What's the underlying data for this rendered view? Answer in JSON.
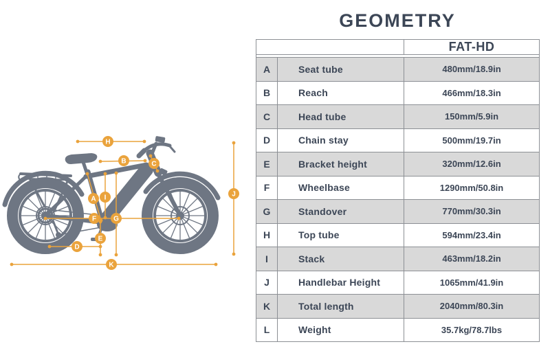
{
  "title": "GEOMETRY",
  "colors": {
    "accent_orange": "#EAA33C",
    "bike_gray": "#6E7683",
    "text_dark": "#3C4656",
    "row_alt_bg": "#D9D9D9",
    "table_border": "#8C8F94"
  },
  "diagram": {
    "measurements": [
      {
        "label": "A",
        "line": [
          127,
          253,
          147,
          321
        ],
        "marker": [
          136,
          289
        ]
      },
      {
        "label": "B",
        "line": [
          146,
          235,
          211,
          234
        ],
        "marker": [
          180,
          234
        ]
      },
      {
        "label": "C",
        "line": [
          219,
          227,
          229,
          249
        ],
        "marker": [
          224,
          238
        ]
      },
      {
        "label": "D",
        "line": [
          72,
          359,
          146,
          359
        ],
        "marker": [
          112,
          359
        ]
      },
      {
        "label": "E",
        "line": [
          146,
          323,
          146,
          371
        ],
        "marker": [
          146,
          347
        ]
      },
      {
        "label": "F",
        "line": [
          66,
          318,
          260,
          318
        ],
        "marker": [
          137,
          318
        ]
      },
      {
        "label": "G",
        "line": [
          169,
          252,
          169,
          371
        ],
        "marker": [
          169,
          318
        ]
      },
      {
        "label": "H",
        "line": [
          113,
          206,
          210,
          206
        ],
        "marker": [
          157,
          206
        ]
      },
      {
        "label": "I",
        "line": [
          153,
          253,
          153,
          317
        ],
        "marker": [
          153,
          287
        ]
      },
      {
        "label": "J",
        "line": [
          340,
          208,
          340,
          370
        ],
        "marker": [
          340,
          282
        ]
      },
      {
        "label": "K",
        "line": [
          17,
          385,
          314,
          385
        ],
        "marker": [
          162,
          385
        ]
      }
    ]
  },
  "table": {
    "column_header": "FAT-HD",
    "rows": [
      {
        "key": "A",
        "name": "Seat tube",
        "value": "480mm/18.9in"
      },
      {
        "key": "B",
        "name": "Reach",
        "value": "466mm/18.3in"
      },
      {
        "key": "C",
        "name": "Head tube",
        "value": "150mm/5.9in"
      },
      {
        "key": "D",
        "name": "Chain stay",
        "value": "500mm/19.7in"
      },
      {
        "key": "E",
        "name": "Bracket height",
        "value": "320mm/12.6in"
      },
      {
        "key": "F",
        "name": "Wheelbase",
        "value": "1290mm/50.8in"
      },
      {
        "key": "G",
        "name": "Standover",
        "value": "770mm/30.3in"
      },
      {
        "key": "H",
        "name": "Top tube",
        "value": "594mm/23.4in"
      },
      {
        "key": "I",
        "name": "Stack",
        "value": "463mm/18.2in"
      },
      {
        "key": "J",
        "name": "Handlebar Height",
        "value": "1065mm/41.9in"
      },
      {
        "key": "K",
        "name": "Total length",
        "value": "2040mm/80.3in"
      },
      {
        "key": "L",
        "name": "Weight",
        "value": "35.7kg/78.7lbs"
      }
    ]
  }
}
